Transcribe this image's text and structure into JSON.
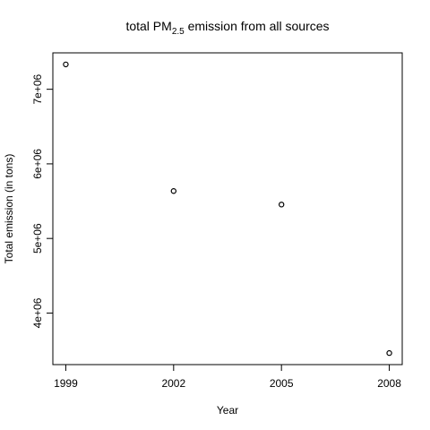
{
  "chart_data": {
    "type": "scatter",
    "title": {
      "prefix": "total PM",
      "subscript": "2.5",
      "suffix": " emission from all sources"
    },
    "xlabel": "Year",
    "ylabel": "Total emission (in tons)",
    "x": [
      1999,
      2002,
      2005,
      2008
    ],
    "y": [
      7332967,
      5635780,
      5454703,
      3464206
    ],
    "x_ticks": [
      {
        "value": 1999,
        "label": "1999"
      },
      {
        "value": 2002,
        "label": "2002"
      },
      {
        "value": 2005,
        "label": "2005"
      },
      {
        "value": 2008,
        "label": "2008"
      }
    ],
    "y_ticks": [
      {
        "value": 4000000,
        "label": "4e+06"
      },
      {
        "value": 5000000,
        "label": "5e+06"
      },
      {
        "value": 6000000,
        "label": "6e+06"
      },
      {
        "value": 7000000,
        "label": "7e+06"
      }
    ],
    "xlim": [
      1998.64,
      2008.36
    ],
    "ylim": [
      3309000,
      7488000
    ],
    "grid": false,
    "marker": "open-circle",
    "marker_color": "#000000"
  }
}
